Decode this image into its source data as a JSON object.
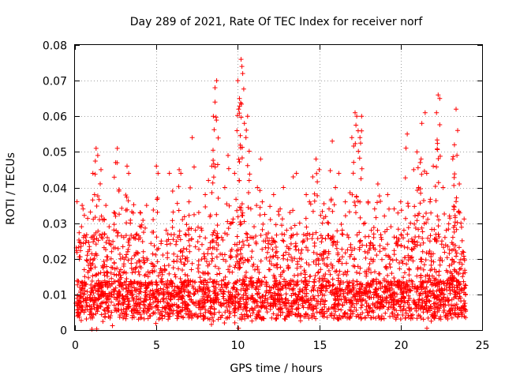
{
  "chart_data": {
    "type": "scatter",
    "title": "Day 289 of 2021, Rate Of TEC Index for receiver norf",
    "xlabel": "GPS time / hours",
    "ylabel": "ROTI / TECUs",
    "xlim": [
      0,
      25
    ],
    "ylim": [
      0,
      0.08
    ],
    "x_ticks": [
      0,
      5,
      10,
      15,
      20,
      25
    ],
    "y_ticks": [
      0,
      0.01,
      0.02,
      0.03,
      0.04,
      0.05,
      0.06,
      0.07,
      0.08
    ],
    "x_tick_labels": [
      "0",
      "5",
      "10",
      "15",
      "20",
      "25"
    ],
    "y_tick_labels": [
      "0",
      "0.01",
      "0.02",
      "0.03",
      "0.04",
      "0.05",
      "0.06",
      "0.07",
      "0.08"
    ],
    "grid": true,
    "marker": "plus",
    "series_color": "#ff0000",
    "series": [
      {
        "name": "ROTI",
        "points": [
          [
            0.2,
            0.008
          ],
          [
            0.3,
            0.012
          ],
          [
            0.4,
            0.029
          ],
          [
            0.5,
            0.034
          ],
          [
            0.6,
            0.015
          ],
          [
            0.8,
            0.022
          ],
          [
            0.9,
            0.009
          ],
          [
            1.0,
            0.026
          ],
          [
            1.1,
            0.044
          ],
          [
            1.2,
            0.038
          ],
          [
            1.3,
            0.051
          ],
          [
            1.4,
            0.049
          ],
          [
            1.5,
            0.031
          ],
          [
            1.6,
            0.045
          ],
          [
            1.7,
            0.018
          ],
          [
            1.8,
            0.027
          ],
          [
            1.9,
            0.035
          ],
          [
            2.0,
            0.012
          ],
          [
            2.1,
            0.029
          ],
          [
            2.2,
            0.024
          ],
          [
            2.4,
            0.033
          ],
          [
            2.5,
            0.047
          ],
          [
            2.6,
            0.051
          ],
          [
            2.7,
            0.039
          ],
          [
            2.8,
            0.02
          ],
          [
            3.0,
            0.026
          ],
          [
            3.2,
            0.046
          ],
          [
            3.3,
            0.044
          ],
          [
            3.4,
            0.03
          ],
          [
            3.6,
            0.017
          ],
          [
            3.8,
            0.027
          ],
          [
            4.0,
            0.033
          ],
          [
            4.2,
            0.022
          ],
          [
            4.4,
            0.035
          ],
          [
            4.6,
            0.016
          ],
          [
            4.8,
            0.031
          ],
          [
            5.0,
            0.046
          ],
          [
            5.1,
            0.044
          ],
          [
            5.3,
            0.025
          ],
          [
            5.5,
            0.018
          ],
          [
            5.6,
            0.028
          ],
          [
            5.8,
            0.044
          ],
          [
            6.0,
            0.039
          ],
          [
            6.2,
            0.024
          ],
          [
            6.4,
            0.045
          ],
          [
            6.5,
            0.044
          ],
          [
            6.6,
            0.031
          ],
          [
            6.8,
            0.02
          ],
          [
            7.0,
            0.036
          ],
          [
            7.2,
            0.054
          ],
          [
            7.4,
            0.028
          ],
          [
            7.6,
            0.033
          ],
          [
            7.8,
            0.024
          ],
          [
            8.0,
            0.038
          ],
          [
            8.2,
            0.042
          ],
          [
            8.4,
            0.046
          ],
          [
            8.5,
            0.06
          ],
          [
            8.6,
            0.064
          ],
          [
            8.6,
            0.068
          ],
          [
            8.7,
            0.07
          ],
          [
            8.8,
            0.037
          ],
          [
            9.0,
            0.026
          ],
          [
            9.2,
            0.04
          ],
          [
            9.4,
            0.049
          ],
          [
            9.6,
            0.03
          ],
          [
            9.8,
            0.044
          ],
          [
            10.0,
            0.07
          ],
          [
            10.05,
            0.062
          ],
          [
            10.1,
            0.065
          ],
          [
            10.2,
            0.076
          ],
          [
            10.25,
            0.074
          ],
          [
            10.3,
            0.072
          ],
          [
            10.4,
            0.058
          ],
          [
            10.5,
            0.054
          ],
          [
            10.6,
            0.06
          ],
          [
            10.7,
            0.042
          ],
          [
            10.8,
            0.034
          ],
          [
            11.0,
            0.029
          ],
          [
            11.2,
            0.04
          ],
          [
            11.4,
            0.048
          ],
          [
            11.5,
            0.036
          ],
          [
            11.7,
            0.025
          ],
          [
            12.0,
            0.031
          ],
          [
            12.2,
            0.038
          ],
          [
            12.4,
            0.022
          ],
          [
            12.6,
            0.034
          ],
          [
            12.8,
            0.04
          ],
          [
            13.0,
            0.028
          ],
          [
            13.2,
            0.033
          ],
          [
            13.4,
            0.043
          ],
          [
            13.6,
            0.044
          ],
          [
            13.8,
            0.03
          ],
          [
            14.0,
            0.025
          ],
          [
            14.2,
            0.038
          ],
          [
            14.4,
            0.036
          ],
          [
            14.6,
            0.043
          ],
          [
            14.8,
            0.048
          ],
          [
            15.0,
            0.045
          ],
          [
            15.2,
            0.03
          ],
          [
            15.4,
            0.022
          ],
          [
            15.6,
            0.034
          ],
          [
            15.8,
            0.053
          ],
          [
            16.0,
            0.04
          ],
          [
            16.2,
            0.044
          ],
          [
            16.4,
            0.027
          ],
          [
            16.6,
            0.036
          ],
          [
            16.8,
            0.026
          ],
          [
            17.0,
            0.054
          ],
          [
            17.2,
            0.061
          ],
          [
            17.3,
            0.06
          ],
          [
            17.5,
            0.054
          ],
          [
            17.6,
            0.06
          ],
          [
            17.8,
            0.03
          ],
          [
            18.0,
            0.036
          ],
          [
            18.2,
            0.028
          ],
          [
            18.4,
            0.034
          ],
          [
            18.6,
            0.041
          ],
          [
            18.8,
            0.026
          ],
          [
            19.0,
            0.032
          ],
          [
            19.2,
            0.038
          ],
          [
            19.4,
            0.029
          ],
          [
            19.6,
            0.034
          ],
          [
            19.8,
            0.024
          ],
          [
            20.0,
            0.036
          ],
          [
            20.2,
            0.028
          ],
          [
            20.4,
            0.055
          ],
          [
            20.6,
            0.03
          ],
          [
            20.8,
            0.045
          ],
          [
            21.0,
            0.05
          ],
          [
            21.1,
            0.04
          ],
          [
            21.2,
            0.047
          ],
          [
            21.3,
            0.058
          ],
          [
            21.5,
            0.061
          ],
          [
            21.6,
            0.044
          ],
          [
            21.8,
            0.036
          ],
          [
            22.0,
            0.046
          ],
          [
            22.2,
            0.061
          ],
          [
            22.3,
            0.066
          ],
          [
            22.4,
            0.065
          ],
          [
            22.6,
            0.04
          ],
          [
            22.8,
            0.028
          ],
          [
            23.0,
            0.032
          ],
          [
            23.2,
            0.048
          ],
          [
            23.3,
            0.052
          ],
          [
            23.4,
            0.062
          ],
          [
            23.5,
            0.056
          ],
          [
            23.6,
            0.041
          ],
          [
            23.7,
            0.03
          ],
          [
            23.8,
            0.022
          ],
          [
            23.9,
            0.02
          ]
        ],
        "density_profile": {
          "x_range": [
            0.05,
            24.0
          ],
          "base_min": 0.003,
          "base_typical": 0.009,
          "dense_upper": 0.024
        }
      }
    ]
  }
}
